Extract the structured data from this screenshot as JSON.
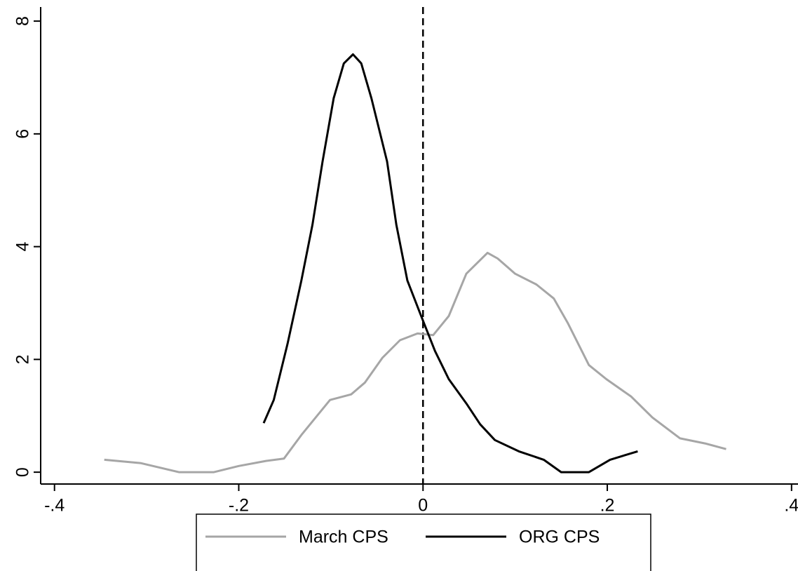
{
  "chart_data": {
    "type": "line",
    "series": [
      {
        "name": "March CPS",
        "color": "#a6a6a6",
        "x": [
          -0.346,
          -0.306,
          -0.265,
          -0.227,
          -0.2,
          -0.17,
          -0.151,
          -0.132,
          -0.101,
          -0.078,
          -0.063,
          -0.044,
          -0.025,
          -0.006,
          0.011,
          0.028,
          0.047,
          0.07,
          0.081,
          0.1,
          0.123,
          0.142,
          0.157,
          0.18,
          0.199,
          0.226,
          0.249,
          0.279,
          0.306,
          0.329
        ],
        "values": [
          0.22,
          0.16,
          0,
          0,
          0.11,
          0.2,
          0.24,
          0.66,
          1.28,
          1.38,
          1.59,
          2.03,
          2.34,
          2.46,
          2.43,
          2.77,
          3.52,
          3.89,
          3.79,
          3.52,
          3.33,
          3.08,
          2.65,
          1.9,
          1.65,
          1.34,
          0.97,
          0.6,
          0.51,
          0.41
        ]
      },
      {
        "name": "ORG CPS",
        "color": "#000000",
        "x": [
          -0.173,
          -0.162,
          -0.147,
          -0.132,
          -0.12,
          -0.109,
          -0.097,
          -0.086,
          -0.076,
          -0.067,
          -0.056,
          -0.039,
          -0.029,
          -0.017,
          -0.002,
          0.013,
          0.028,
          0.047,
          0.062,
          0.078,
          0.104,
          0.131,
          0.15,
          0.18,
          0.203,
          0.233
        ],
        "values": [
          0.87,
          1.28,
          2.28,
          3.4,
          4.39,
          5.51,
          6.63,
          7.25,
          7.41,
          7.25,
          6.63,
          5.51,
          4.39,
          3.4,
          2.77,
          2.15,
          1.65,
          1.22,
          0.85,
          0.57,
          0.37,
          0.22,
          0,
          0,
          0.22,
          0.37
        ]
      }
    ],
    "xlim": [
      -0.415,
      0.407
    ],
    "ylim": [
      -0.21,
      8.25
    ],
    "xticks": [
      {
        "value": -0.4,
        "label": "-.4"
      },
      {
        "value": -0.2,
        "label": "-.2"
      },
      0,
      {
        "value": 0.2,
        "label": ".2"
      },
      {
        "value": 0.4,
        "label": ".4"
      }
    ],
    "yticks": [
      0,
      2,
      4,
      6,
      8
    ],
    "vline": 0,
    "legend": "bottom"
  }
}
